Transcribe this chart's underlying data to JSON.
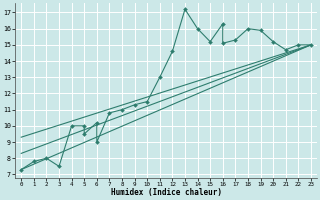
{
  "xlabel": "Humidex (Indice chaleur)",
  "bg_color": "#cce8e8",
  "grid_color": "#ffffff",
  "line_color": "#2e7d6e",
  "xlim": [
    -0.5,
    23.5
  ],
  "ylim": [
    6.8,
    17.6
  ],
  "xticks": [
    0,
    1,
    2,
    3,
    4,
    5,
    6,
    7,
    8,
    9,
    10,
    11,
    12,
    13,
    14,
    15,
    16,
    17,
    18,
    19,
    20,
    21,
    22,
    23
  ],
  "yticks": [
    7,
    8,
    9,
    10,
    11,
    12,
    13,
    14,
    15,
    16,
    17
  ],
  "data_line": {
    "x": [
      0,
      1,
      2,
      3,
      4,
      5,
      5,
      6,
      6,
      7,
      8,
      9,
      10,
      11,
      12,
      13,
      14,
      15,
      16,
      16,
      17,
      18,
      19,
      20,
      21,
      22,
      23
    ],
    "y": [
      7.3,
      7.8,
      8.0,
      7.5,
      10.0,
      10.0,
      9.5,
      10.2,
      9.0,
      10.8,
      11.0,
      11.3,
      11.5,
      13.0,
      14.6,
      17.2,
      16.0,
      15.2,
      16.3,
      15.1,
      15.3,
      16.0,
      15.9,
      15.2,
      14.7,
      15.0,
      15.0
    ]
  },
  "line1": {
    "x": [
      0,
      23
    ],
    "y": [
      7.3,
      15.0
    ]
  },
  "line2": {
    "x": [
      0,
      23
    ],
    "y": [
      8.3,
      15.0
    ]
  },
  "line3": {
    "x": [
      0,
      23
    ],
    "y": [
      9.3,
      15.0
    ]
  }
}
